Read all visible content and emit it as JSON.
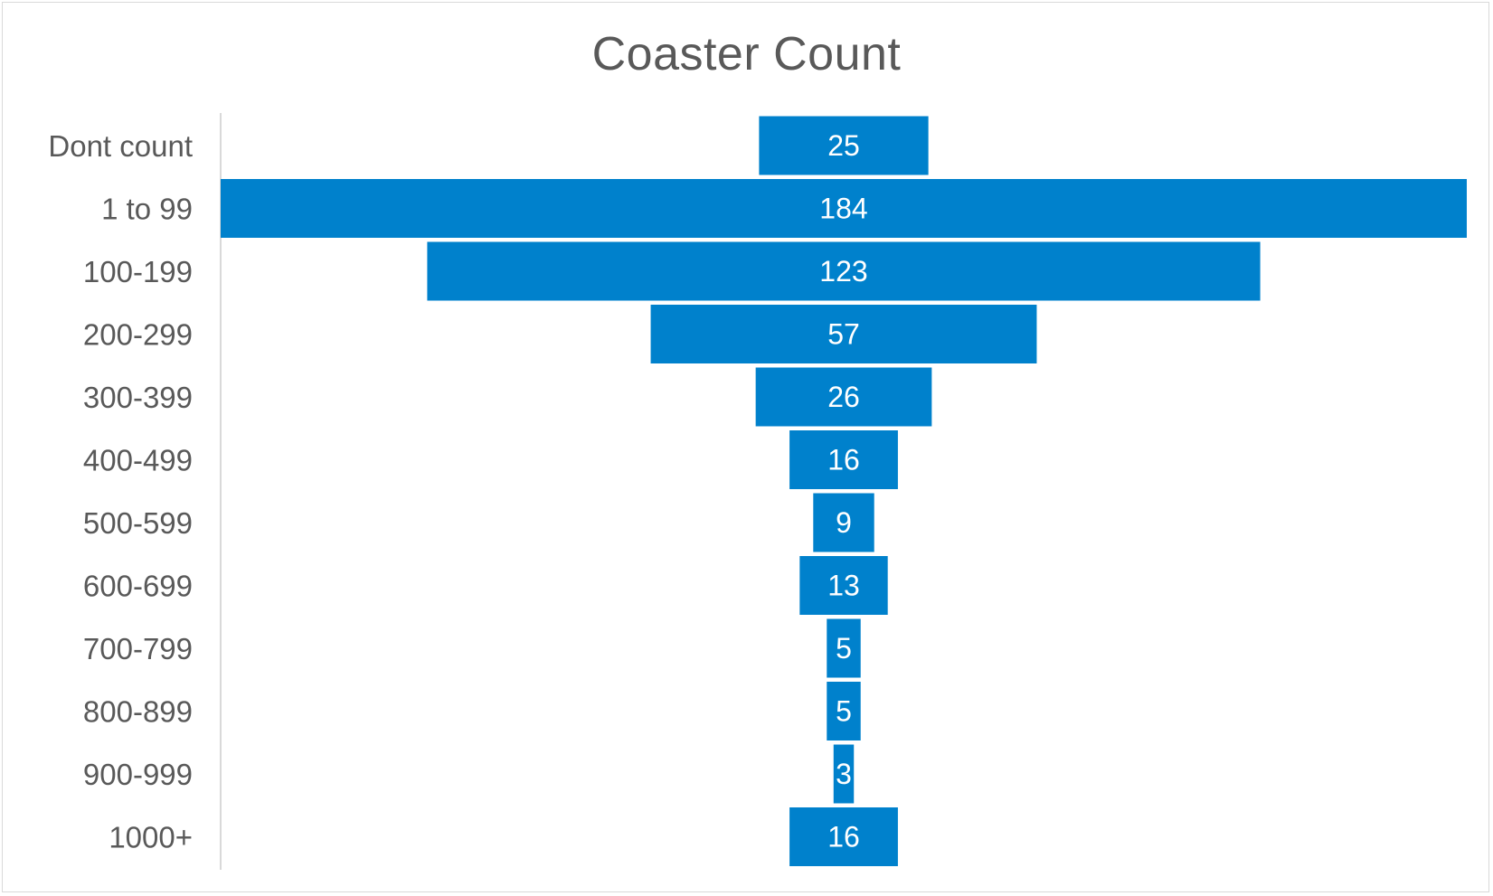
{
  "chart_data": {
    "type": "bar",
    "subtype": "funnel",
    "title": "Coaster Count",
    "xlabel": "",
    "ylabel": "",
    "grid": false,
    "legend": "none",
    "bar_color": "#0081CC",
    "categories": [
      "Dont count",
      "1 to 99",
      "100-199",
      "200-299",
      "300-399",
      "400-499",
      "500-599",
      "600-699",
      "700-799",
      "800-899",
      "900-999",
      "1000+"
    ],
    "values": [
      25,
      184,
      123,
      57,
      26,
      16,
      9,
      13,
      5,
      5,
      3,
      16
    ]
  }
}
